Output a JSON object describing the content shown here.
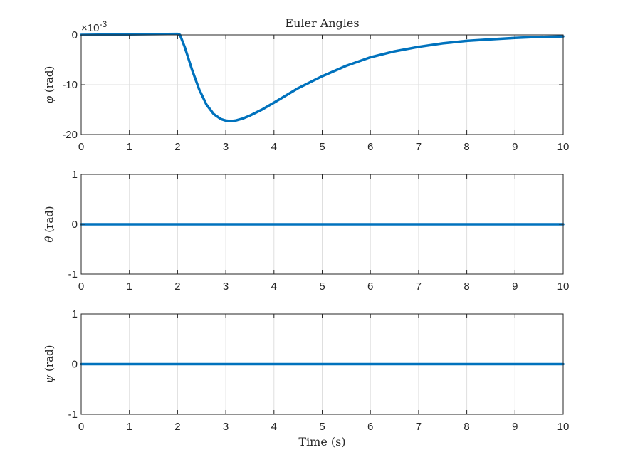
{
  "chart_data": [
    {
      "type": "line",
      "title": "Euler Angles",
      "ylabel_symbol": "φ",
      "ylabel_unit": "(rad)",
      "xlabel": "",
      "exponent_label": "×10",
      "exponent_power": "-3",
      "xlim": [
        0,
        10
      ],
      "ylim": [
        -20,
        0
      ],
      "x_ticks": [
        "0",
        "1",
        "2",
        "3",
        "4",
        "5",
        "6",
        "7",
        "8",
        "9",
        "10"
      ],
      "y_ticks": [
        "0",
        "-10",
        "-20"
      ],
      "y_tick_values": [
        0,
        -10,
        -20
      ],
      "grid": true,
      "color": "#0072BD",
      "series": [
        {
          "x": [
            0,
            1,
            2,
            2.05,
            2.15,
            2.3,
            2.45,
            2.6,
            2.75,
            2.9,
            3.0,
            3.1,
            3.2,
            3.35,
            3.5,
            3.75,
            4.0,
            4.5,
            5.0,
            5.5,
            6.0,
            6.5,
            7.0,
            7.5,
            8.0,
            8.5,
            9.0,
            9.5,
            10.0
          ],
          "values": [
            0,
            0.1,
            0.2,
            0.0,
            -2.5,
            -7.0,
            -11.0,
            -14.0,
            -15.9,
            -16.9,
            -17.2,
            -17.3,
            -17.2,
            -16.8,
            -16.2,
            -15.0,
            -13.6,
            -10.7,
            -8.3,
            -6.2,
            -4.5,
            -3.3,
            -2.4,
            -1.7,
            -1.2,
            -0.9,
            -0.6,
            -0.4,
            -0.3
          ]
        }
      ]
    },
    {
      "type": "line",
      "ylabel_symbol": "θ",
      "ylabel_unit": "(rad)",
      "xlabel": "",
      "xlim": [
        0,
        10
      ],
      "ylim": [
        -1,
        1
      ],
      "x_ticks": [
        "0",
        "1",
        "2",
        "3",
        "4",
        "5",
        "6",
        "7",
        "8",
        "9",
        "10"
      ],
      "y_ticks": [
        "1",
        "0",
        "-1"
      ],
      "y_tick_values": [
        1,
        0,
        -1
      ],
      "grid": true,
      "color": "#0072BD",
      "series": [
        {
          "x": [
            0,
            10
          ],
          "values": [
            0,
            0
          ]
        }
      ]
    },
    {
      "type": "line",
      "ylabel_symbol": "ψ",
      "ylabel_unit": "(rad)",
      "xlabel": "Time (s)",
      "xlim": [
        0,
        10
      ],
      "ylim": [
        -1,
        1
      ],
      "x_ticks": [
        "0",
        "1",
        "2",
        "3",
        "4",
        "5",
        "6",
        "7",
        "8",
        "9",
        "10"
      ],
      "y_ticks": [
        "1",
        "0",
        "-1"
      ],
      "y_tick_values": [
        1,
        0,
        -1
      ],
      "grid": true,
      "color": "#0072BD",
      "series": [
        {
          "x": [
            0,
            10
          ],
          "values": [
            0,
            0
          ]
        }
      ]
    }
  ]
}
